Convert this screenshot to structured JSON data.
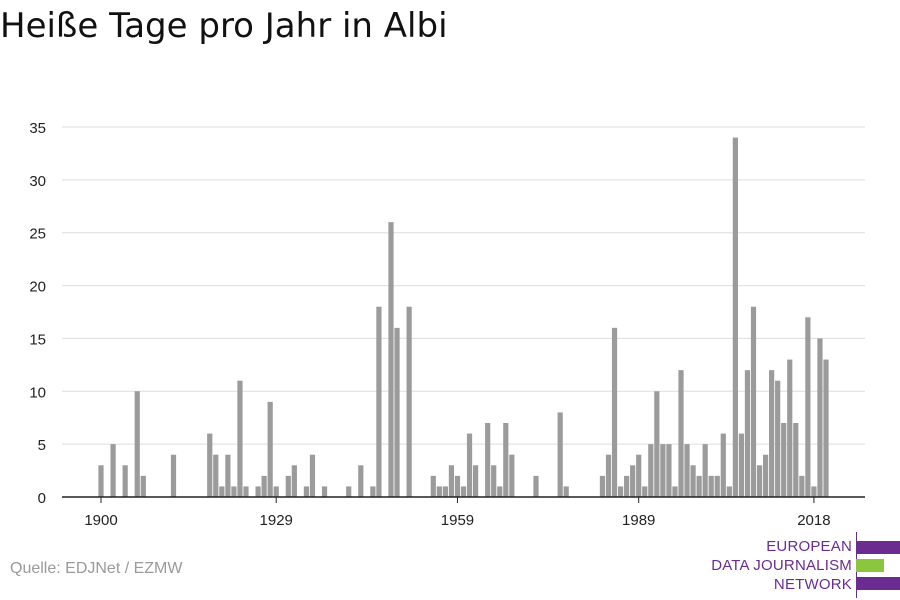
{
  "title": "Heiße Tage pro Jahr in Albi",
  "source": "Quelle: EDJNet / EZMW",
  "logo": {
    "lines": [
      "EUROPEAN",
      "DATA JOURNALISM",
      "NETWORK"
    ],
    "colors": {
      "purple": "#6a2c91",
      "green": "#8cc63f"
    }
  },
  "colors": {
    "bar": "#9b9b9b",
    "grid": "#dddddd",
    "axis": "#222222",
    "text": "#222222"
  },
  "chart_data": {
    "type": "bar",
    "title": "Heiße Tage pro Jahr in Albi",
    "xlabel": "",
    "ylabel": "",
    "ylim": [
      0,
      35
    ],
    "yticks": [
      0,
      5,
      10,
      15,
      20,
      25,
      30,
      35
    ],
    "xticks": [
      1900,
      1929,
      1959,
      1989,
      2018
    ],
    "grid": true,
    "x": [
      1900,
      1901,
      1902,
      1903,
      1904,
      1905,
      1906,
      1907,
      1908,
      1909,
      1910,
      1911,
      1912,
      1913,
      1914,
      1915,
      1916,
      1917,
      1918,
      1919,
      1920,
      1921,
      1922,
      1923,
      1924,
      1925,
      1926,
      1927,
      1928,
      1929,
      1930,
      1931,
      1932,
      1933,
      1934,
      1935,
      1936,
      1937,
      1938,
      1939,
      1940,
      1941,
      1942,
      1943,
      1944,
      1945,
      1946,
      1947,
      1948,
      1949,
      1950,
      1951,
      1952,
      1953,
      1954,
      1955,
      1956,
      1957,
      1958,
      1959,
      1960,
      1961,
      1962,
      1963,
      1964,
      1965,
      1966,
      1967,
      1968,
      1969,
      1970,
      1971,
      1972,
      1973,
      1974,
      1975,
      1976,
      1977,
      1978,
      1979,
      1980,
      1981,
      1982,
      1983,
      1984,
      1985,
      1986,
      1987,
      1988,
      1989,
      1990,
      1991,
      1992,
      1993,
      1994,
      1995,
      1996,
      1997,
      1998,
      1999,
      2000,
      2001,
      2002,
      2003,
      2004,
      2005,
      2006,
      2007,
      2008,
      2009,
      2010,
      2011,
      2012,
      2013,
      2014,
      2015,
      2016,
      2017,
      2018,
      2019,
      2020
    ],
    "values": [
      3,
      0,
      5,
      0,
      3,
      0,
      10,
      2,
      0,
      0,
      0,
      0,
      4,
      0,
      0,
      0,
      0,
      0,
      6,
      4,
      1,
      4,
      1,
      11,
      1,
      0,
      1,
      2,
      9,
      1,
      0,
      2,
      3,
      0,
      1,
      4,
      0,
      1,
      0,
      0,
      0,
      1,
      0,
      3,
      0,
      1,
      18,
      0,
      26,
      16,
      0,
      18,
      0,
      0,
      0,
      2,
      1,
      1,
      3,
      2,
      1,
      6,
      3,
      0,
      7,
      3,
      1,
      7,
      4,
      0,
      0,
      0,
      2,
      0,
      0,
      0,
      8,
      1,
      0,
      0,
      0,
      0,
      0,
      2,
      4,
      16,
      1,
      2,
      3,
      4,
      1,
      5,
      10,
      5,
      5,
      1,
      12,
      5,
      3,
      2,
      5,
      2,
      2,
      6,
      1,
      34,
      6,
      12,
      18,
      3,
      4,
      12,
      11,
      7,
      13,
      7,
      2,
      17,
      1,
      15,
      13
    ]
  }
}
